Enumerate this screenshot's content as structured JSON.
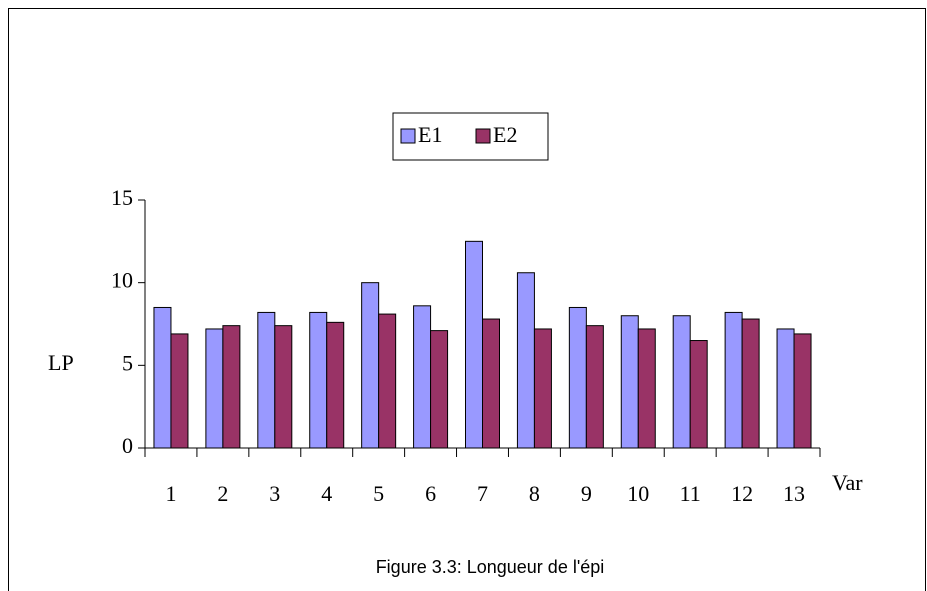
{
  "chart_data": {
    "type": "bar",
    "caption": "Figure 3.3: Longueur de l'épi",
    "x_label": "Var",
    "y_label": "LP",
    "categories": [
      "1",
      "2",
      "3",
      "4",
      "5",
      "6",
      "7",
      "8",
      "9",
      "10",
      "11",
      "12",
      "13"
    ],
    "series": [
      {
        "name": "E1",
        "color": "#9999ff",
        "values": [
          8.5,
          7.2,
          8.2,
          8.2,
          10,
          8.6,
          12.5,
          10.6,
          8.5,
          8.0,
          8.0,
          8.2,
          7.2
        ]
      },
      {
        "name": "E2",
        "color": "#993366",
        "values": [
          6.9,
          7.4,
          7.4,
          7.6,
          8.1,
          7.1,
          7.8,
          7.2,
          7.4,
          7.2,
          6.5,
          7.8,
          6.9
        ]
      }
    ],
    "ylim": [
      0,
      15
    ],
    "yticks": [
      0,
      5,
      10,
      15
    ],
    "grid": false,
    "legend": "top"
  }
}
